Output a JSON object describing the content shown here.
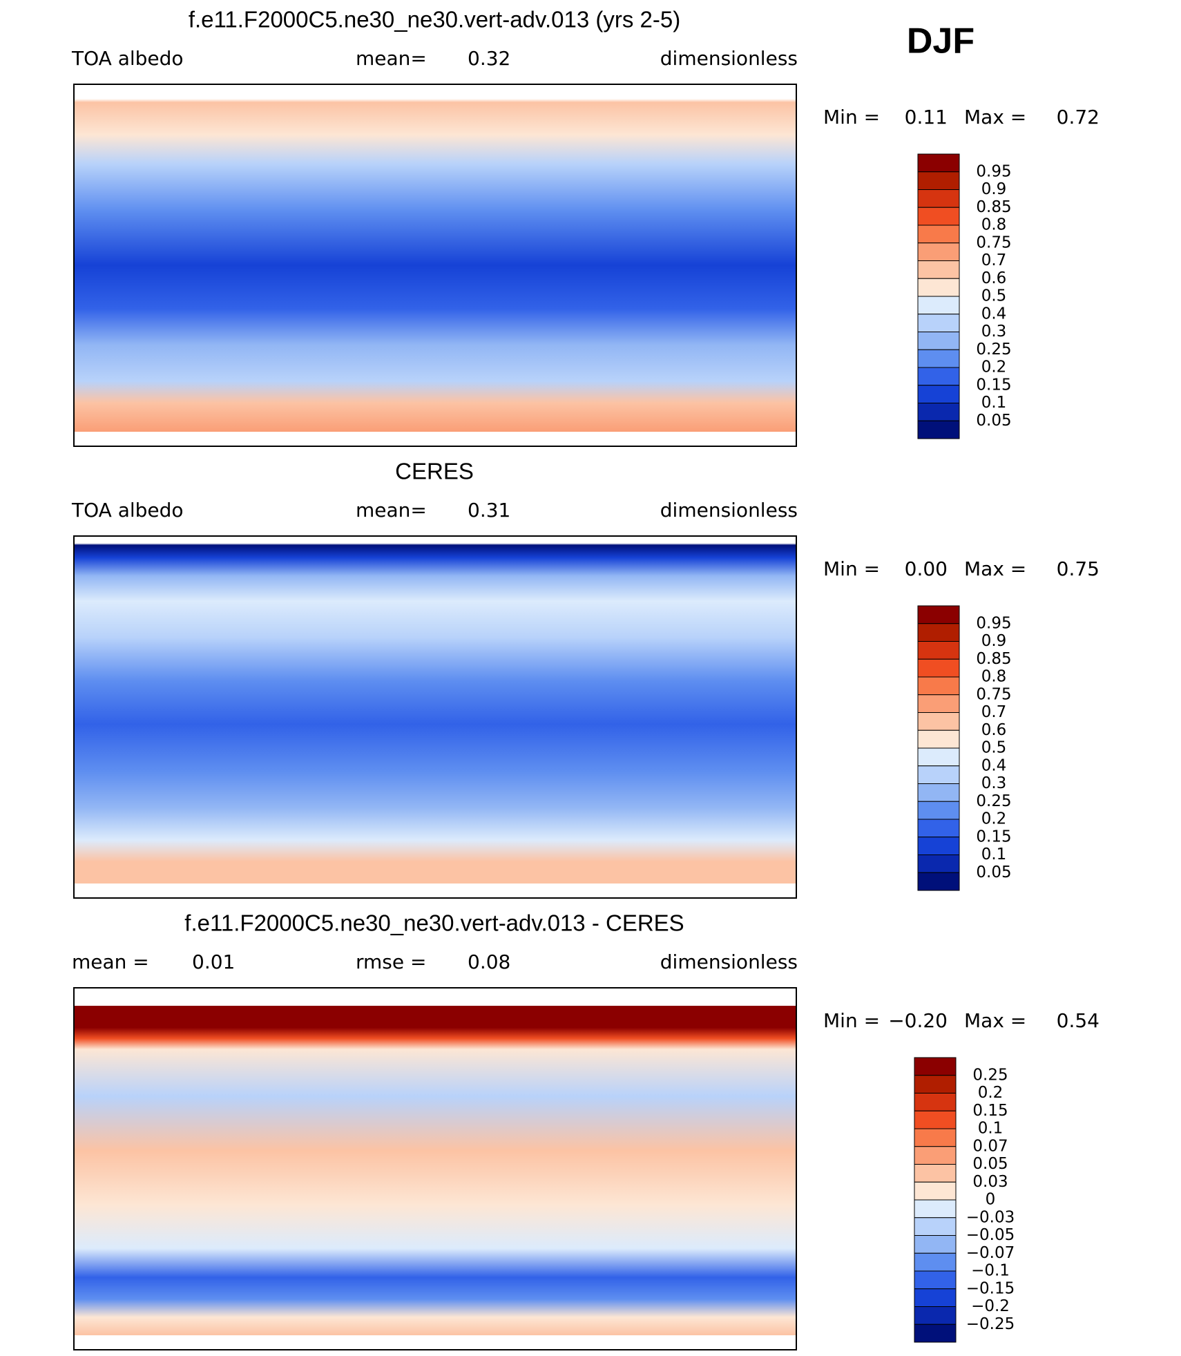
{
  "season": "DJF",
  "panels": [
    {
      "title": "f.e11.F2000C5.ne30_ne30.vert-adv.013 (yrs 2-5)",
      "left": [
        "TOA albedo"
      ],
      "center": [
        "mean=",
        "0.32"
      ],
      "right": "dimensionless",
      "min_label": "Min =",
      "min": "0.11",
      "max_label": "Max =",
      "max": "0.72",
      "colorbar": {
        "labels": [
          "0.95",
          "0.9",
          "0.85",
          "0.8",
          "0.75",
          "0.7",
          "0.6",
          "0.5",
          "0.4",
          "0.3",
          "0.25",
          "0.2",
          "0.15",
          "0.1",
          "0.05"
        ],
        "colors": [
          "#8b0000",
          "#b01e00",
          "#d63410",
          "#f04e22",
          "#f87a4a",
          "#fa9e76",
          "#fcc3a4",
          "#fde6d4",
          "#dcebfc",
          "#b8d2fa",
          "#92b6f4",
          "#5e8ef0",
          "#3262e8",
          "#1642d6",
          "#0a28ae",
          "#00107a"
        ]
      }
    },
    {
      "title": "CERES",
      "left": [
        "TOA albedo"
      ],
      "center": [
        "mean=",
        "0.31"
      ],
      "right": "dimensionless",
      "min_label": "Min =",
      "min": "0.00",
      "max_label": "Max =",
      "max": "0.75",
      "colorbar": {
        "labels": [
          "0.95",
          "0.9",
          "0.85",
          "0.8",
          "0.75",
          "0.7",
          "0.6",
          "0.5",
          "0.4",
          "0.3",
          "0.25",
          "0.2",
          "0.15",
          "0.1",
          "0.05"
        ],
        "colors": [
          "#8b0000",
          "#b01e00",
          "#d63410",
          "#f04e22",
          "#f87a4a",
          "#fa9e76",
          "#fcc3a4",
          "#fde6d4",
          "#dcebfc",
          "#b8d2fa",
          "#92b6f4",
          "#5e8ef0",
          "#3262e8",
          "#1642d6",
          "#0a28ae",
          "#00107a"
        ]
      }
    },
    {
      "title": "f.e11.F2000C5.ne30_ne30.vert-adv.013 - CERES",
      "left": [
        "mean =",
        "0.01"
      ],
      "center": [
        "rmse =",
        "0.08"
      ],
      "right": "dimensionless",
      "min_label": "Min =",
      "min": "−0.20",
      "max_label": "Max =",
      "max": "0.54",
      "colorbar": {
        "labels": [
          "0.25",
          "0.2",
          "0.15",
          "0.1",
          "0.07",
          "0.05",
          "0.03",
          "0",
          "−0.03",
          "−0.05",
          "−0.07",
          "−0.1",
          "−0.15",
          "−0.2",
          "−0.25"
        ],
        "colors": [
          "#8b0000",
          "#b01e00",
          "#d63410",
          "#f04e22",
          "#f87a4a",
          "#fa9e76",
          "#fcc3a4",
          "#fde6d4",
          "#dcebfc",
          "#b8d2fa",
          "#92b6f4",
          "#5e8ef0",
          "#3262e8",
          "#1642d6",
          "#0a28ae",
          "#00107a"
        ]
      }
    }
  ]
}
